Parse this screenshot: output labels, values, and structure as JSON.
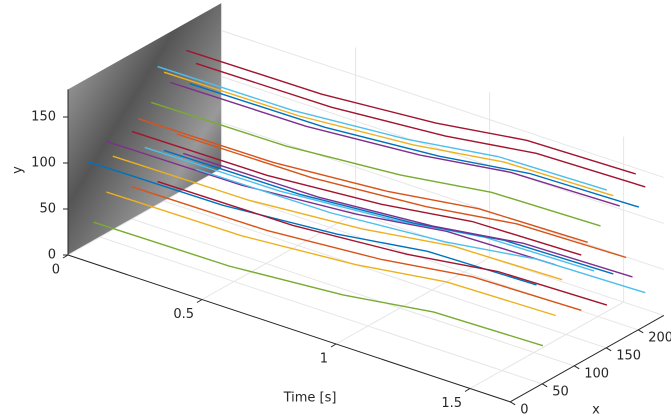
{
  "chart_data": {
    "type": "line3d",
    "xlabel": "x",
    "ylabel": "y",
    "tlabel": "Time [s]",
    "tlim": [
      0,
      1.65
    ],
    "xlim": [
      0,
      240
    ],
    "ylim": [
      0,
      180
    ],
    "tticks": [
      0,
      0.5,
      1,
      1.5
    ],
    "xticks": [
      0,
      50,
      100,
      150,
      200
    ],
    "yticks": [
      0,
      50,
      100,
      150
    ],
    "grid": true,
    "series": [
      {
        "color": "#4DBEEE",
        "t": [
          0,
          0.5,
          0.9,
          1.2,
          1.6
        ],
        "x": [
          140,
          142,
          153,
          169,
          172
        ],
        "y": [
          150,
          150,
          153,
          157,
          158
        ]
      },
      {
        "color": "#A2142F",
        "t": [
          0,
          0.5,
          0.9,
          1.2,
          1.6
        ],
        "x": [
          185,
          187,
          198,
          214,
          217
        ],
        "y": [
          150,
          150,
          153,
          157,
          158
        ]
      },
      {
        "color": "#EDB120",
        "t": [
          0,
          0.5,
          0.9,
          1.2,
          1.6
        ],
        "x": [
          150,
          152,
          163,
          179,
          182
        ],
        "y": [
          140,
          140,
          143,
          147,
          148
        ]
      },
      {
        "color": "#A2142F",
        "t": [
          0,
          0.5,
          0.9,
          1.2,
          1.6
        ],
        "x": [
          200,
          202,
          213,
          229,
          232
        ],
        "y": [
          130,
          130,
          133,
          137,
          138
        ]
      },
      {
        "color": "#7E2F8E",
        "t": [
          0,
          0.5,
          0.9,
          1.2,
          1.6
        ],
        "x": [
          160,
          162,
          173,
          189,
          192
        ],
        "y": [
          125,
          125,
          128,
          132,
          133
        ]
      },
      {
        "color": "#77AC30",
        "t": [
          0,
          0.5,
          0.9,
          1.2,
          1.6
        ],
        "x": [
          130,
          132,
          143,
          159,
          162
        ],
        "y": [
          115,
          115,
          118,
          122,
          123
        ]
      },
      {
        "color": "#0072BD",
        "t": [
          0,
          0.5,
          0.9,
          1.2,
          1.6
        ],
        "x": [
          190,
          192,
          203,
          219,
          222
        ],
        "y": [
          112,
          112,
          115,
          119,
          120
        ]
      },
      {
        "color": "#D95319",
        "t": [
          0,
          0.5,
          0.9,
          1.2,
          1.6
        ],
        "x": [
          110,
          112,
          123,
          139,
          142
        ],
        "y": [
          105,
          105,
          108,
          112,
          113
        ]
      },
      {
        "color": "#7E2F8E",
        "t": [
          0,
          0.5,
          0.9,
          1.2,
          1.6
        ],
        "x": [
          60,
          62,
          73,
          89,
          92
        ],
        "y": [
          100,
          100,
          103,
          107,
          108
        ]
      },
      {
        "color": "#A2142F",
        "t": [
          0,
          0.5,
          0.9,
          1.2,
          1.6
        ],
        "x": [
          100,
          102,
          113,
          129,
          132
        ],
        "y": [
          95,
          95,
          98,
          102,
          103
        ]
      },
      {
        "color": "#0072BD",
        "t": [
          0,
          0.5,
          0.9,
          1.2,
          1.6
        ],
        "x": [
          30,
          32,
          43,
          59,
          62
        ],
        "y": [
          90,
          90,
          93,
          97,
          98
        ]
      },
      {
        "color": "#EDB120",
        "t": [
          0,
          0.5,
          0.9,
          1.2,
          1.6
        ],
        "x": [
          70,
          72,
          83,
          99,
          102
        ],
        "y": [
          80,
          80,
          83,
          87,
          88
        ]
      },
      {
        "color": "#4DBEEE",
        "t": [
          0,
          0.5,
          0.9,
          1.2,
          1.6
        ],
        "x": [
          120,
          122,
          133,
          149,
          152
        ],
        "y": [
          70,
          70,
          73,
          77,
          78
        ]
      },
      {
        "color": "#D95319",
        "t": [
          0,
          0.5,
          0.9,
          1.2,
          1.6
        ],
        "x": [
          170,
          172,
          183,
          199,
          202
        ],
        "y": [
          65,
          65,
          68,
          72,
          73
        ]
      },
      {
        "color": "#0072BD",
        "t": [
          0,
          0.5,
          0.9,
          1.2,
          1.6
        ],
        "x": [
          150,
          152,
          163,
          179,
          182
        ],
        "y": [
          55,
          55,
          58,
          62,
          63
        ]
      },
      {
        "color": "#EDB120",
        "t": [
          0,
          0.5,
          0.9,
          1.2,
          1.6
        ],
        "x": [
          60,
          62,
          73,
          89,
          92
        ],
        "y": [
          45,
          45,
          48,
          52,
          53
        ]
      },
      {
        "color": "#7E2F8E",
        "t": [
          0,
          0.5,
          0.9,
          1.2,
          1.6
        ],
        "x": [
          180,
          182,
          193,
          209,
          212
        ],
        "y": [
          40,
          40,
          43,
          47,
          48
        ]
      },
      {
        "color": "#D95319",
        "t": [
          0,
          0.5,
          0.9,
          1.2,
          1.6
        ],
        "x": [
          100,
          102,
          113,
          129,
          132
        ],
        "y": [
          35,
          35,
          38,
          42,
          43
        ]
      },
      {
        "color": "#A2142F",
        "t": [
          0,
          0.5,
          0.9,
          1.2,
          1.6
        ],
        "x": [
          140,
          142,
          153,
          169,
          172
        ],
        "y": [
          25,
          25,
          28,
          32,
          33
        ]
      },
      {
        "color": "#77AC30",
        "t": [
          0,
          0.5,
          0.9,
          1.2,
          1.6
        ],
        "x": [
          40,
          42,
          53,
          69,
          72
        ],
        "y": [
          20,
          20,
          23,
          27,
          28
        ]
      },
      {
        "color": "#4DBEEE",
        "t": [
          0,
          0.5,
          0.9,
          1.2,
          1.6
        ],
        "x": [
          200,
          202,
          213,
          229,
          232
        ],
        "y": [
          15,
          15,
          18,
          22,
          23
        ]
      }
    ]
  }
}
